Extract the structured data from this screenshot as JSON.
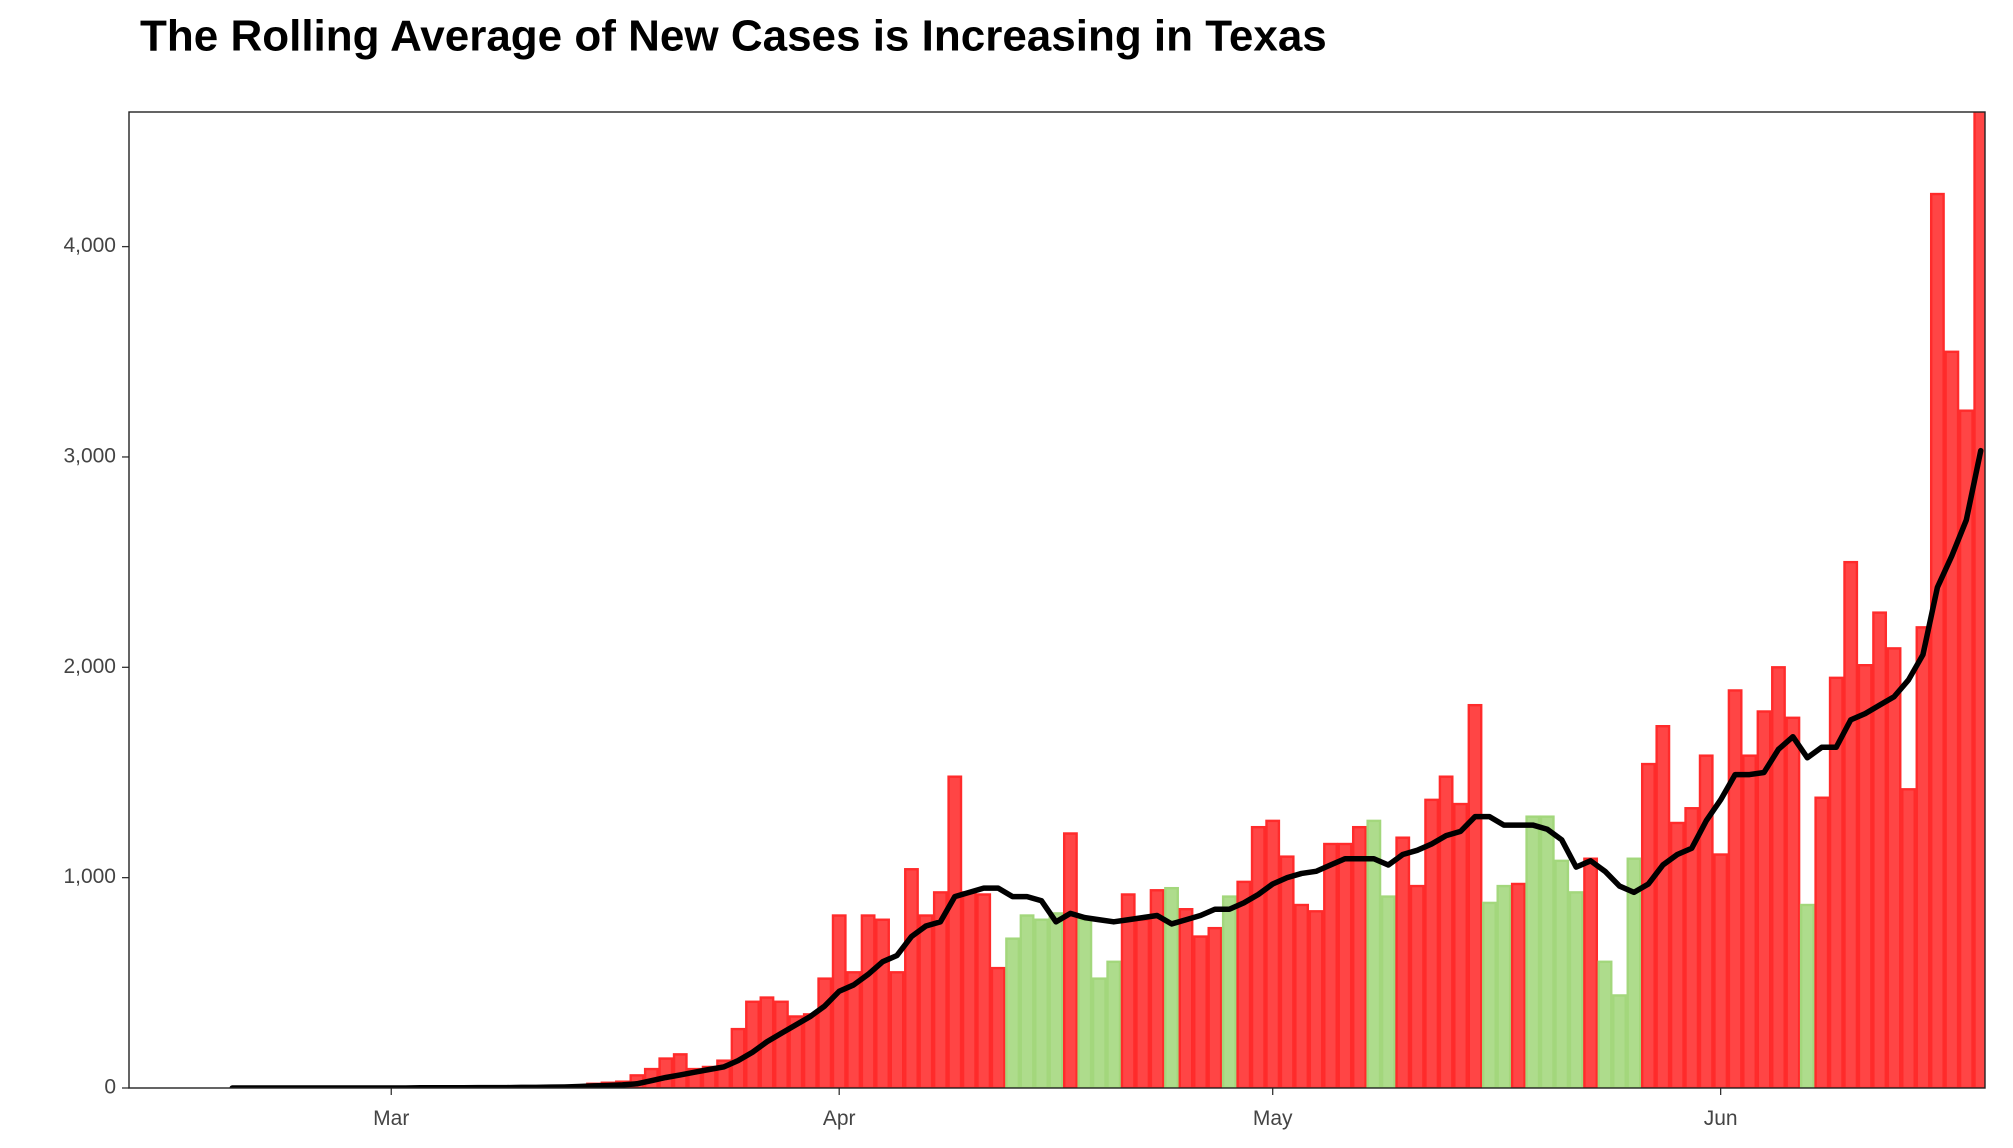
{
  "chart_data": {
    "type": "bar",
    "title": "The Rolling Average of New Cases is Increasing in Texas",
    "categories": [
      null,
      null,
      null,
      null,
      null,
      null,
      null,
      null,
      null,
      null,
      null,
      "Mar",
      null,
      null,
      null,
      null,
      null,
      null,
      null,
      null,
      null,
      null,
      null,
      null,
      null,
      null,
      null,
      null,
      null,
      null,
      null,
      null,
      null,
      null,
      null,
      null,
      null,
      null,
      null,
      null,
      null,
      null,
      "Apr",
      null,
      null,
      null,
      null,
      null,
      null,
      null,
      null,
      null,
      null,
      null,
      null,
      null,
      null,
      null,
      null,
      null,
      null,
      null,
      null,
      null,
      null,
      null,
      null,
      null,
      null,
      null,
      null,
      null,
      "May",
      null,
      null,
      null,
      null,
      null,
      null,
      null,
      null,
      null,
      null,
      null,
      null,
      null,
      null,
      null,
      null,
      null,
      null,
      null,
      null,
      null,
      null,
      null,
      null,
      null,
      null,
      null,
      null,
      null,
      null,
      "Jun",
      null,
      null,
      null,
      null,
      null,
      null,
      null,
      null,
      null,
      null,
      null,
      null,
      null,
      null,
      null,
      null,
      null,
      null
    ],
    "series": [
      {
        "type": "bar",
        "values": [
          0,
          0,
          0,
          0,
          0,
          0,
          0,
          0,
          0,
          0,
          0,
          0,
          1,
          1,
          1,
          2,
          2,
          3,
          3,
          4,
          5,
          5,
          6,
          10,
          8,
          20,
          25,
          30,
          60,
          90,
          140,
          160,
          90,
          100,
          130,
          280,
          410,
          430,
          410,
          340,
          350,
          520,
          820,
          550,
          820,
          800,
          550,
          1040,
          820,
          930,
          1480,
          930,
          920,
          570,
          710,
          820,
          800,
          830,
          1210,
          800,
          520,
          600,
          920,
          800,
          940,
          950,
          850,
          720,
          760,
          910,
          980,
          1240,
          1270,
          1100,
          870,
          840,
          1160,
          1160,
          1240,
          1270,
          910,
          1190,
          960,
          1370,
          1480,
          1350,
          1820,
          880,
          960,
          970,
          1290,
          1290,
          1080,
          930,
          1090,
          600,
          440,
          1090,
          1540,
          1720,
          1260,
          1330,
          1580,
          1110,
          1890,
          1580,
          1790,
          2000,
          1760,
          870,
          1380,
          1950,
          2500,
          2010,
          2260,
          2090,
          1420,
          2190,
          4250,
          3500,
          3220,
          4650
        ],
        "colors": [
          "#ff2b2b",
          "#ff2b2b",
          "#ff2b2b",
          "#ff2b2b",
          "#ff2b2b",
          "#ff2b2b",
          "#ff2b2b",
          "#ff2b2b",
          "#ff2b2b",
          "#ff2b2b",
          "#ff2b2b",
          "#ff2b2b",
          "#ff2b2b",
          "#ff2b2b",
          "#ff2b2b",
          "#ff2b2b",
          "#ff2b2b",
          "#ff2b2b",
          "#ff2b2b",
          "#ff2b2b",
          "#ff2b2b",
          "#ff2b2b",
          "#ff2b2b",
          "#ff2b2b",
          "#ff2b2b",
          "#ff2b2b",
          "#ff2b2b",
          "#ff2b2b",
          "#ff2b2b",
          "#ff2b2b",
          "#ff2b2b",
          "#ff2b2b",
          "#ff2b2b",
          "#ff2b2b",
          "#ff2b2b",
          "#ff2b2b",
          "#ff2b2b",
          "#ff2b2b",
          "#ff2b2b",
          "#ff2b2b",
          "#ff2b2b",
          "#ff2b2b",
          "#ff2b2b",
          "#ff2b2b",
          "#ff2b2b",
          "#ff2b2b",
          "#ff2b2b",
          "#ff2b2b",
          "#ff2b2b",
          "#ff2b2b",
          "#ff2b2b",
          "#ff2b2b",
          "#ff2b2b",
          "#ff2b2b",
          "#a3d77c",
          "#a3d77c",
          "#a3d77c",
          "#a3d77c",
          "#ff2b2b",
          "#a3d77c",
          "#a3d77c",
          "#a3d77c",
          "#ff2b2b",
          "#ff2b2b",
          "#ff2b2b",
          "#a3d77c",
          "#ff2b2b",
          "#ff2b2b",
          "#ff2b2b",
          "#a3d77c",
          "#ff2b2b",
          "#ff2b2b",
          "#ff2b2b",
          "#ff2b2b",
          "#ff2b2b",
          "#ff2b2b",
          "#ff2b2b",
          "#ff2b2b",
          "#ff2b2b",
          "#a3d77c",
          "#a3d77c",
          "#ff2b2b",
          "#ff2b2b",
          "#ff2b2b",
          "#ff2b2b",
          "#ff2b2b",
          "#ff2b2b",
          "#a3d77c",
          "#a3d77c",
          "#ff2b2b",
          "#a3d77c",
          "#a3d77c",
          "#a3d77c",
          "#a3d77c",
          "#ff2b2b",
          "#a3d77c",
          "#a3d77c",
          "#a3d77c",
          "#ff2b2b",
          "#ff2b2b",
          "#ff2b2b",
          "#ff2b2b",
          "#ff2b2b",
          "#ff2b2b",
          "#ff2b2b",
          "#ff2b2b",
          "#ff2b2b",
          "#ff2b2b",
          "#ff2b2b",
          "#a3d77c",
          "#ff2b2b",
          "#ff2b2b",
          "#ff2b2b",
          "#ff2b2b",
          "#ff2b2b",
          "#ff2b2b",
          "#ff2b2b",
          "#ff2b2b",
          "#ff2b2b",
          "#ff2b2b",
          "#ff2b2b",
          "#ff2b2b"
        ]
      },
      {
        "type": "line",
        "color": "#000000",
        "values": [
          0,
          0,
          0,
          0,
          0,
          0,
          0,
          0,
          0,
          0,
          0,
          0,
          0,
          1,
          1,
          1,
          1,
          2,
          2,
          2,
          3,
          3,
          4,
          5,
          7,
          10,
          12,
          15,
          20,
          35,
          50,
          62,
          75,
          88,
          100,
          130,
          170,
          220,
          260,
          300,
          340,
          390,
          460,
          490,
          540,
          600,
          630,
          720,
          770,
          790,
          910,
          930,
          950,
          950,
          910,
          910,
          890,
          790,
          830,
          810,
          800,
          790,
          800,
          810,
          820,
          780,
          800,
          820,
          850,
          850,
          880,
          920,
          970,
          1000,
          1020,
          1030,
          1060,
          1090,
          1090,
          1090,
          1060,
          1110,
          1130,
          1160,
          1200,
          1220,
          1290,
          1290,
          1250,
          1250,
          1250,
          1230,
          1180,
          1050,
          1080,
          1030,
          960,
          930,
          970,
          1060,
          1110,
          1140,
          1270,
          1370,
          1490,
          1490,
          1500,
          1610,
          1670,
          1570,
          1620,
          1620,
          1750,
          1780,
          1820,
          1860,
          1940,
          2060,
          2380,
          2530,
          2700,
          3030
        ]
      }
    ],
    "ylim": [
      0,
      4640
    ],
    "yticks": [
      0,
      {
        "value": 1000,
        "label": "1,000"
      },
      {
        "value": 2000,
        "label": "2,000"
      },
      {
        "value": 3000,
        "label": "3,000"
      },
      {
        "value": 4000,
        "label": "4,000"
      }
    ],
    "grid": false
  }
}
